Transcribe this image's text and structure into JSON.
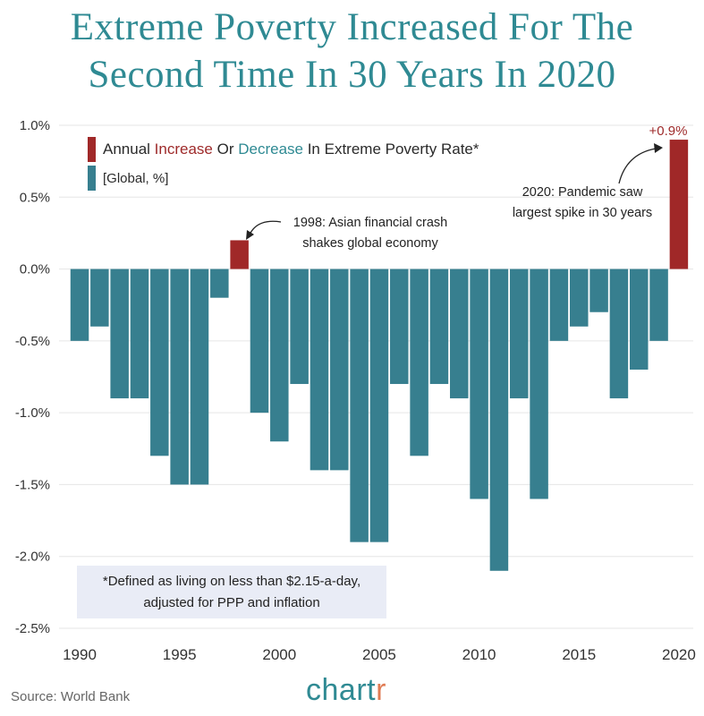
{
  "title_line1": "Extreme Poverty Increased For The",
  "title_line2": "Second Time In 30 Years In 2020",
  "legend": {
    "prefix": "Annual ",
    "increase": "Increase",
    "or": " Or ",
    "decrease": "Decrease",
    "suffix": " In Extreme Poverty Rate*",
    "sub": "[Global, %]"
  },
  "annotations": {
    "a1998_line1": "1998: Asian financial crash",
    "a1998_line2": "shakes global economy",
    "a2020_line1": "2020: Pandemic saw",
    "a2020_line2": "largest spike in 30 years",
    "top_label": "+0.9%"
  },
  "footnote_line1": "*Defined as living on less than $2.15-a-day,",
  "footnote_line2": "adjusted for PPP and inflation",
  "source": "Source: World Bank",
  "brand_main": "chart",
  "brand_accent": "r",
  "colors": {
    "increase": "#a02828",
    "decrease": "#377f8f",
    "title": "#2f8a93",
    "grid": "#e6e6e6",
    "note_bg": "#e9ecf6"
  },
  "chart_data": {
    "type": "bar",
    "x": [
      1990,
      1991,
      1992,
      1993,
      1994,
      1995,
      1996,
      1997,
      1998,
      1999,
      2000,
      2001,
      2002,
      2003,
      2004,
      2005,
      2006,
      2007,
      2008,
      2009,
      2010,
      2011,
      2012,
      2013,
      2014,
      2015,
      2016,
      2017,
      2018,
      2019,
      2020
    ],
    "values": [
      -0.5,
      -0.4,
      -0.9,
      -0.9,
      -1.3,
      -1.5,
      -1.5,
      -0.2,
      0.2,
      -1.0,
      -1.2,
      -0.8,
      -1.4,
      -1.4,
      -1.9,
      -1.9,
      -0.8,
      -1.3,
      -0.8,
      -0.9,
      -1.6,
      -2.1,
      -0.9,
      -1.6,
      -0.5,
      -0.4,
      -0.3,
      -0.9,
      -0.7,
      -0.5,
      0.9
    ],
    "ylim": [
      -2.5,
      1.0
    ],
    "yticks": [
      1.0,
      0.5,
      0.0,
      -0.5,
      -1.0,
      -1.5,
      -2.0,
      -2.5
    ],
    "ytick_labels": [
      "1.0%",
      "0.5%",
      "0.0%",
      "-0.5%",
      "-1.0%",
      "-1.5%",
      "-2.0%",
      "-2.5%"
    ],
    "xticks": [
      1990,
      1995,
      2000,
      2005,
      2010,
      2015,
      2020
    ],
    "xtick_labels": [
      "1990",
      "1995",
      "2000",
      "2005",
      "2010",
      "2015",
      "2020"
    ],
    "grid": true
  }
}
